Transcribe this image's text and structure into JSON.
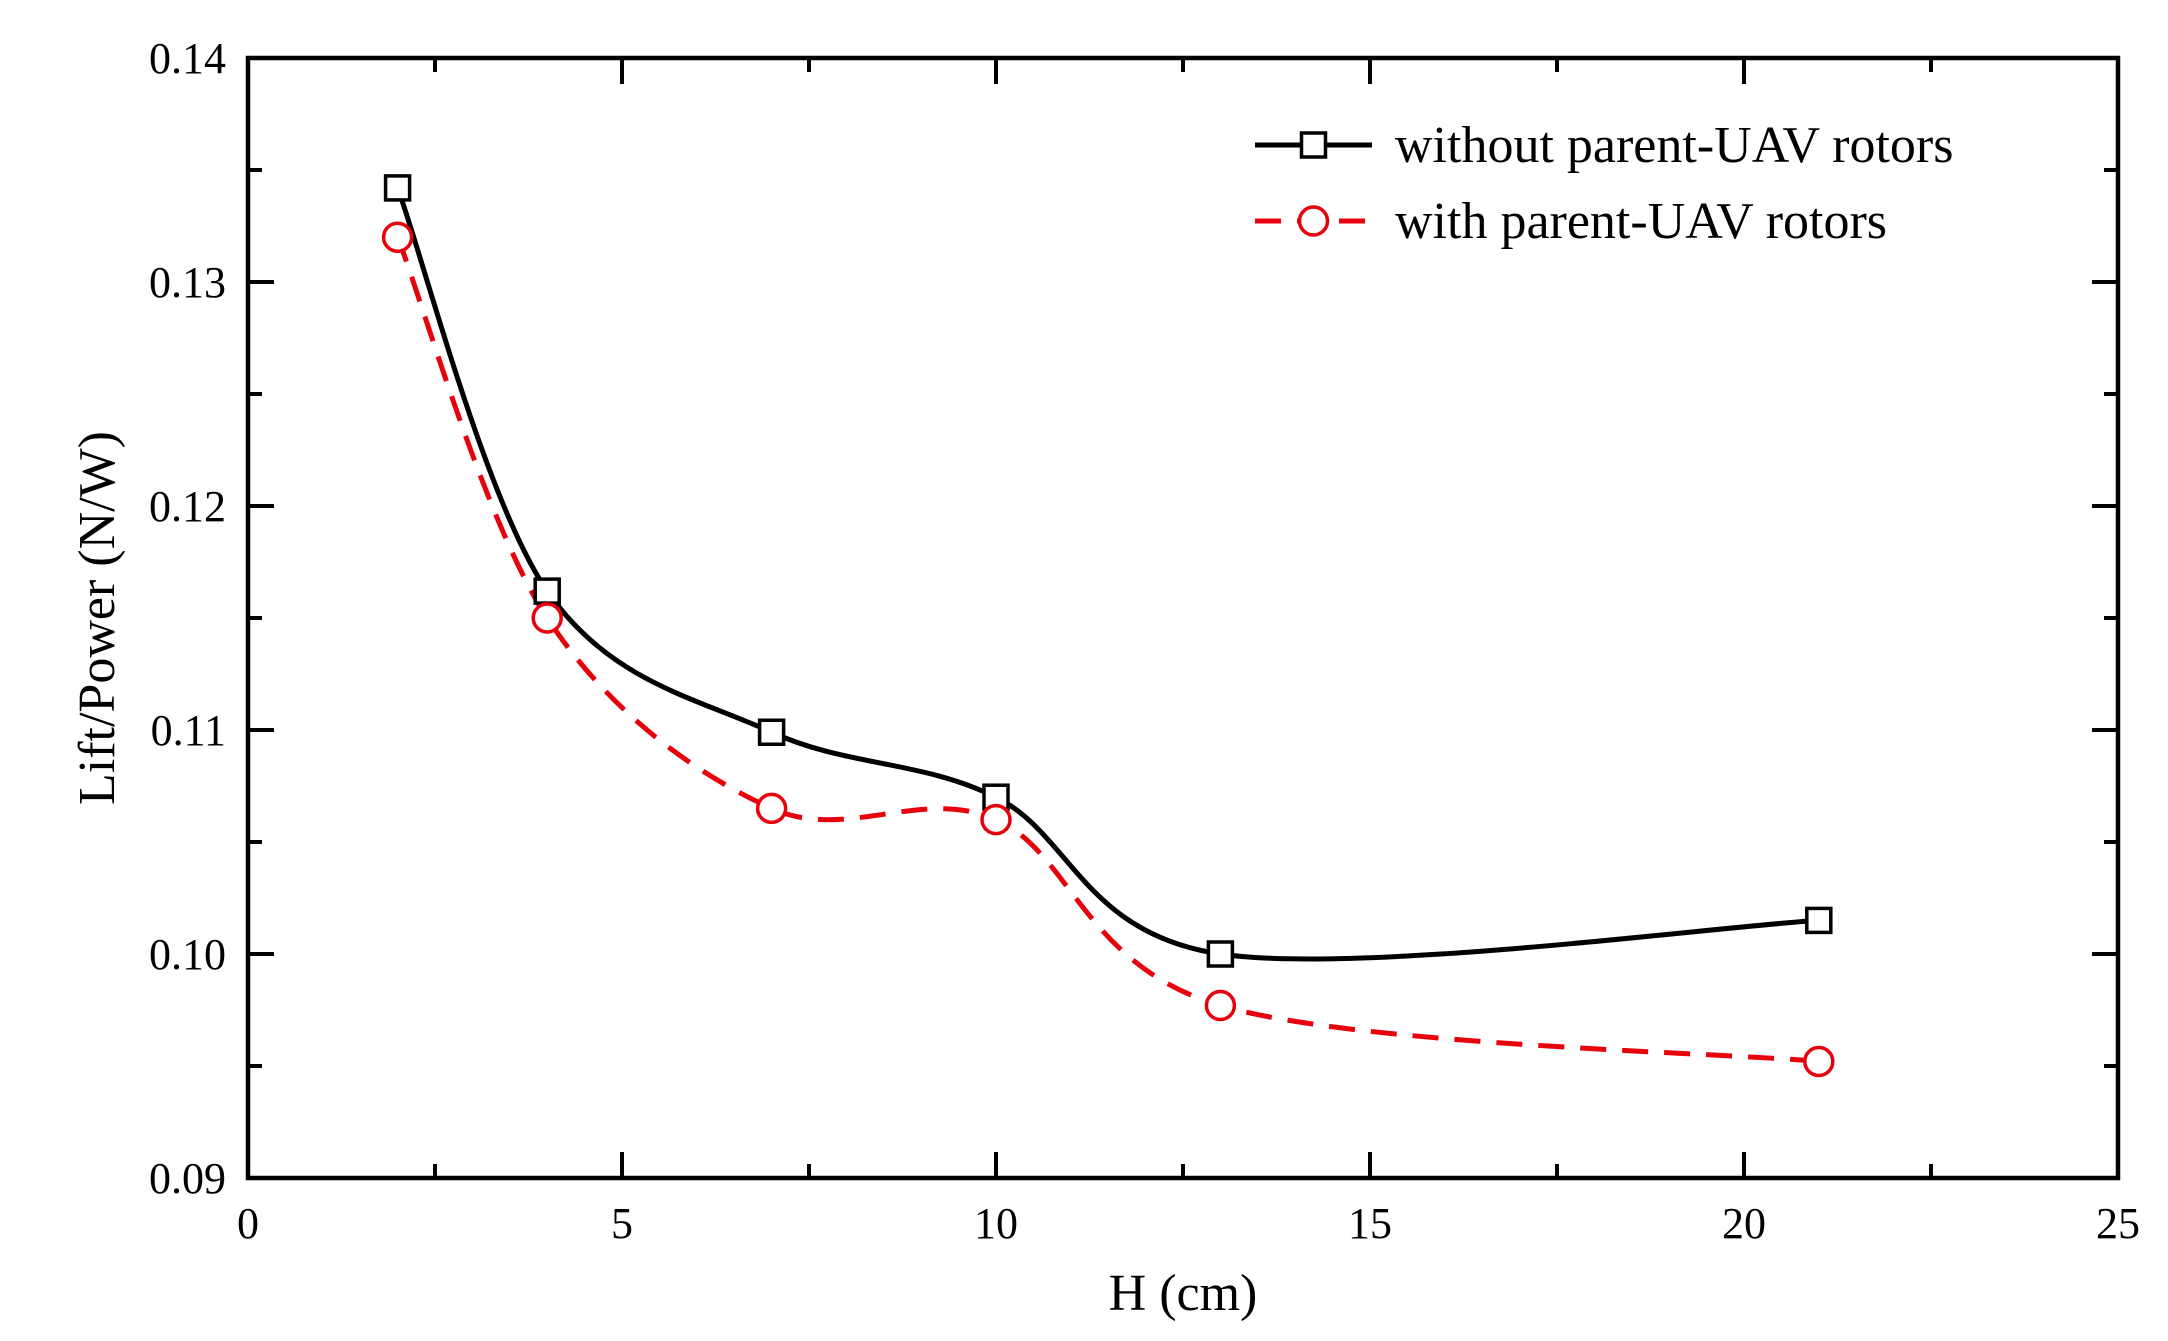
{
  "chart_data": {
    "type": "line",
    "title": "",
    "xlabel": "H (cm)",
    "ylabel": "Lift/Power (N/W)",
    "xlim": [
      0,
      25
    ],
    "ylim": [
      0.09,
      0.14
    ],
    "xticks": [
      0,
      5,
      10,
      15,
      20,
      25
    ],
    "xtick_labels": [
      "0",
      "5",
      "10",
      "15",
      "20",
      "25"
    ],
    "yticks": [
      0.09,
      0.1,
      0.11,
      0.12,
      0.13,
      0.14
    ],
    "ytick_labels": [
      "0.09",
      "0.10",
      "0.11",
      "0.12",
      "0.13",
      "0.14"
    ],
    "grid": false,
    "legend_position": "top-right",
    "x": [
      2,
      4,
      7,
      10,
      13,
      21
    ],
    "series": [
      {
        "name": "without parent-UAV rotors",
        "values": [
          0.1342,
          0.1162,
          0.1099,
          0.107,
          0.1,
          0.1015
        ],
        "color": "#000000",
        "line_style": "solid",
        "marker": "square"
      },
      {
        "name": "with parent-UAV rotors",
        "values": [
          0.132,
          0.115,
          0.1065,
          0.106,
          0.0977,
          0.0952
        ],
        "color": "#e8000b",
        "line_style": "dashed",
        "marker": "circle"
      }
    ]
  }
}
